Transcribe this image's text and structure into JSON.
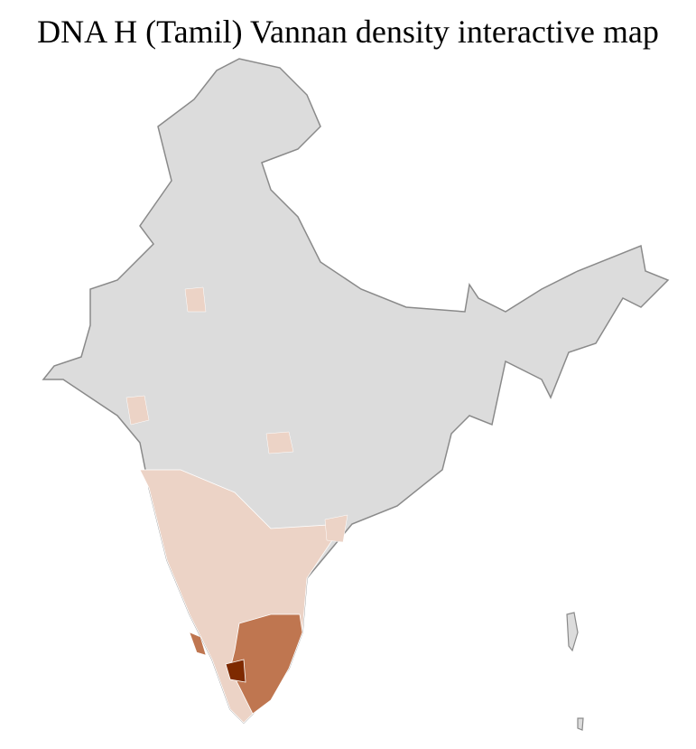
{
  "title": "DNA H (Tamil) Vannan density interactive map",
  "map": {
    "type": "choropleth",
    "region": "India districts",
    "colors": {
      "no_data": "#dcdcdc",
      "low": "#ecd3c6",
      "medium": "#bf7650",
      "high": "#a04a22",
      "highest": "#7e2a00",
      "border": "#8a8a8a",
      "district_border": "#ffffff"
    }
  }
}
